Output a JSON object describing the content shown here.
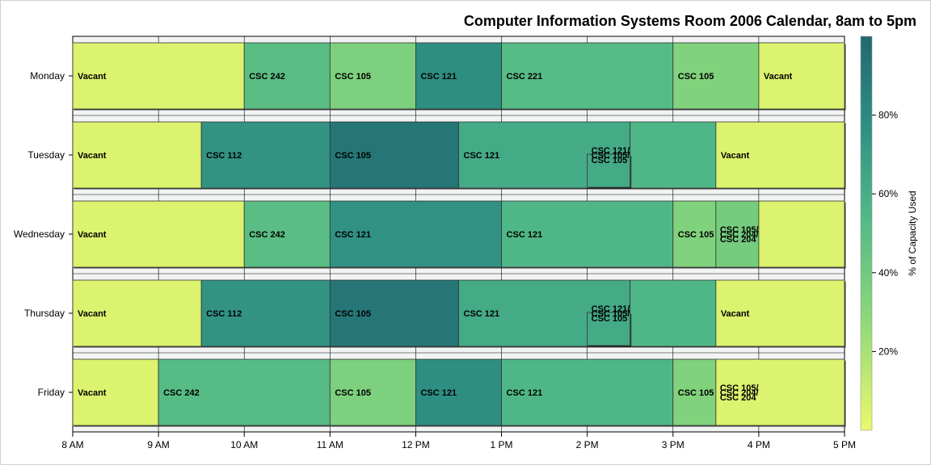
{
  "chart_data": {
    "type": "bar",
    "orientation": "horizontal",
    "title": "Computer Information Systems Room 2006 Calendar, 8am to 5pm",
    "colorbar_label": "% of Capacity Used",
    "colorbar_ticks": [
      "20%",
      "40%",
      "60%",
      "80%"
    ],
    "colorbar_tick_values": [
      20,
      40,
      60,
      80
    ],
    "color_range": [
      0,
      100
    ],
    "xlim": [
      8,
      17
    ],
    "x_ticks": [
      8,
      9,
      10,
      11,
      12,
      13,
      14,
      15,
      16,
      17
    ],
    "x_tick_labels": [
      "8 AM",
      "9 AM",
      "10 AM",
      "11 AM",
      "12 PM",
      "1 PM",
      "2 PM",
      "3 PM",
      "4 PM",
      "5 PM"
    ],
    "days": [
      "Monday",
      "Tuesday",
      "Wednesday",
      "Thursday",
      "Friday"
    ],
    "grid": true,
    "colors": {
      "low": "#ebf96c",
      "mid": "#4fb787",
      "high": "#226870"
    },
    "series": [
      {
        "day": "Monday",
        "blocks": [
          {
            "start": 8,
            "end": 10,
            "label": "Vacant",
            "pct": 5
          },
          {
            "start": 10,
            "end": 11,
            "label": "CSC 242",
            "pct": 50
          },
          {
            "start": 11,
            "end": 12,
            "label": "CSC 105",
            "pct": 35
          },
          {
            "start": 12,
            "end": 13,
            "label": "CSC 121",
            "pct": 78
          },
          {
            "start": 13,
            "end": 15,
            "label": "CSC 221",
            "pct": 52
          },
          {
            "start": 15,
            "end": 16,
            "label": "CSC 105",
            "pct": 33
          },
          {
            "start": 16,
            "end": 17,
            "label": "Vacant",
            "pct": 5
          }
        ]
      },
      {
        "day": "Tuesday",
        "blocks": [
          {
            "start": 8,
            "end": 9.5,
            "label": "Vacant",
            "pct": 5
          },
          {
            "start": 9.5,
            "end": 11,
            "label": "CSC 112",
            "pct": 75
          },
          {
            "start": 11,
            "end": 12.5,
            "label": "CSC 105",
            "pct": 92
          },
          {
            "start": 12.5,
            "end": 14.5,
            "label": "CSC 121",
            "pct": 62
          },
          {
            "start": 14,
            "end": 14.5,
            "label": "CSC 121/ CSC 105/ CSC 105",
            "pct": 62,
            "stacked": true
          },
          {
            "start": 14.5,
            "end": 15.5,
            "label": "",
            "pct": 55
          },
          {
            "start": 15.5,
            "end": 17,
            "label": "Vacant",
            "pct": 5
          }
        ]
      },
      {
        "day": "Wednesday",
        "blocks": [
          {
            "start": 8,
            "end": 10,
            "label": "Vacant",
            "pct": 5
          },
          {
            "start": 10,
            "end": 11,
            "label": "CSC 242",
            "pct": 50
          },
          {
            "start": 11,
            "end": 13,
            "label": "CSC 121",
            "pct": 76
          },
          {
            "start": 13,
            "end": 15,
            "label": "CSC 121",
            "pct": 55
          },
          {
            "start": 15,
            "end": 15.5,
            "label": "CSC 105",
            "pct": 33
          },
          {
            "start": 15.5,
            "end": 16,
            "label": "CSC 105/ CSC 204/ CSC 204",
            "pct": 38,
            "stacked": true
          },
          {
            "start": 16,
            "end": 17,
            "label": "",
            "pct": 5
          }
        ]
      },
      {
        "day": "Thursday",
        "blocks": [
          {
            "start": 8,
            "end": 9.5,
            "label": "Vacant",
            "pct": 5
          },
          {
            "start": 9.5,
            "end": 11,
            "label": "CSC 112",
            "pct": 75
          },
          {
            "start": 11,
            "end": 12.5,
            "label": "CSC 105",
            "pct": 92
          },
          {
            "start": 12.5,
            "end": 14.5,
            "label": "CSC 121",
            "pct": 62
          },
          {
            "start": 14,
            "end": 14.5,
            "label": "CSC 121/ CSC 105/ CSC 105",
            "pct": 62,
            "stacked": true
          },
          {
            "start": 14.5,
            "end": 15.5,
            "label": "",
            "pct": 55
          },
          {
            "start": 15.5,
            "end": 17,
            "label": "Vacant",
            "pct": 5
          }
        ]
      },
      {
        "day": "Friday",
        "blocks": [
          {
            "start": 8,
            "end": 9,
            "label": "Vacant",
            "pct": 5
          },
          {
            "start": 9,
            "end": 11,
            "label": "CSC 242",
            "pct": 52
          },
          {
            "start": 11,
            "end": 12,
            "label": "CSC 105",
            "pct": 35
          },
          {
            "start": 12,
            "end": 13,
            "label": "CSC 121",
            "pct": 78
          },
          {
            "start": 13,
            "end": 15,
            "label": "CSC 121",
            "pct": 55
          },
          {
            "start": 15,
            "end": 15.5,
            "label": "CSC 105",
            "pct": 33
          },
          {
            "start": 15.5,
            "end": 17,
            "label": "CSC 105/ CSC 204/ CSC 204",
            "pct": 5,
            "stacked": true
          }
        ]
      }
    ]
  }
}
